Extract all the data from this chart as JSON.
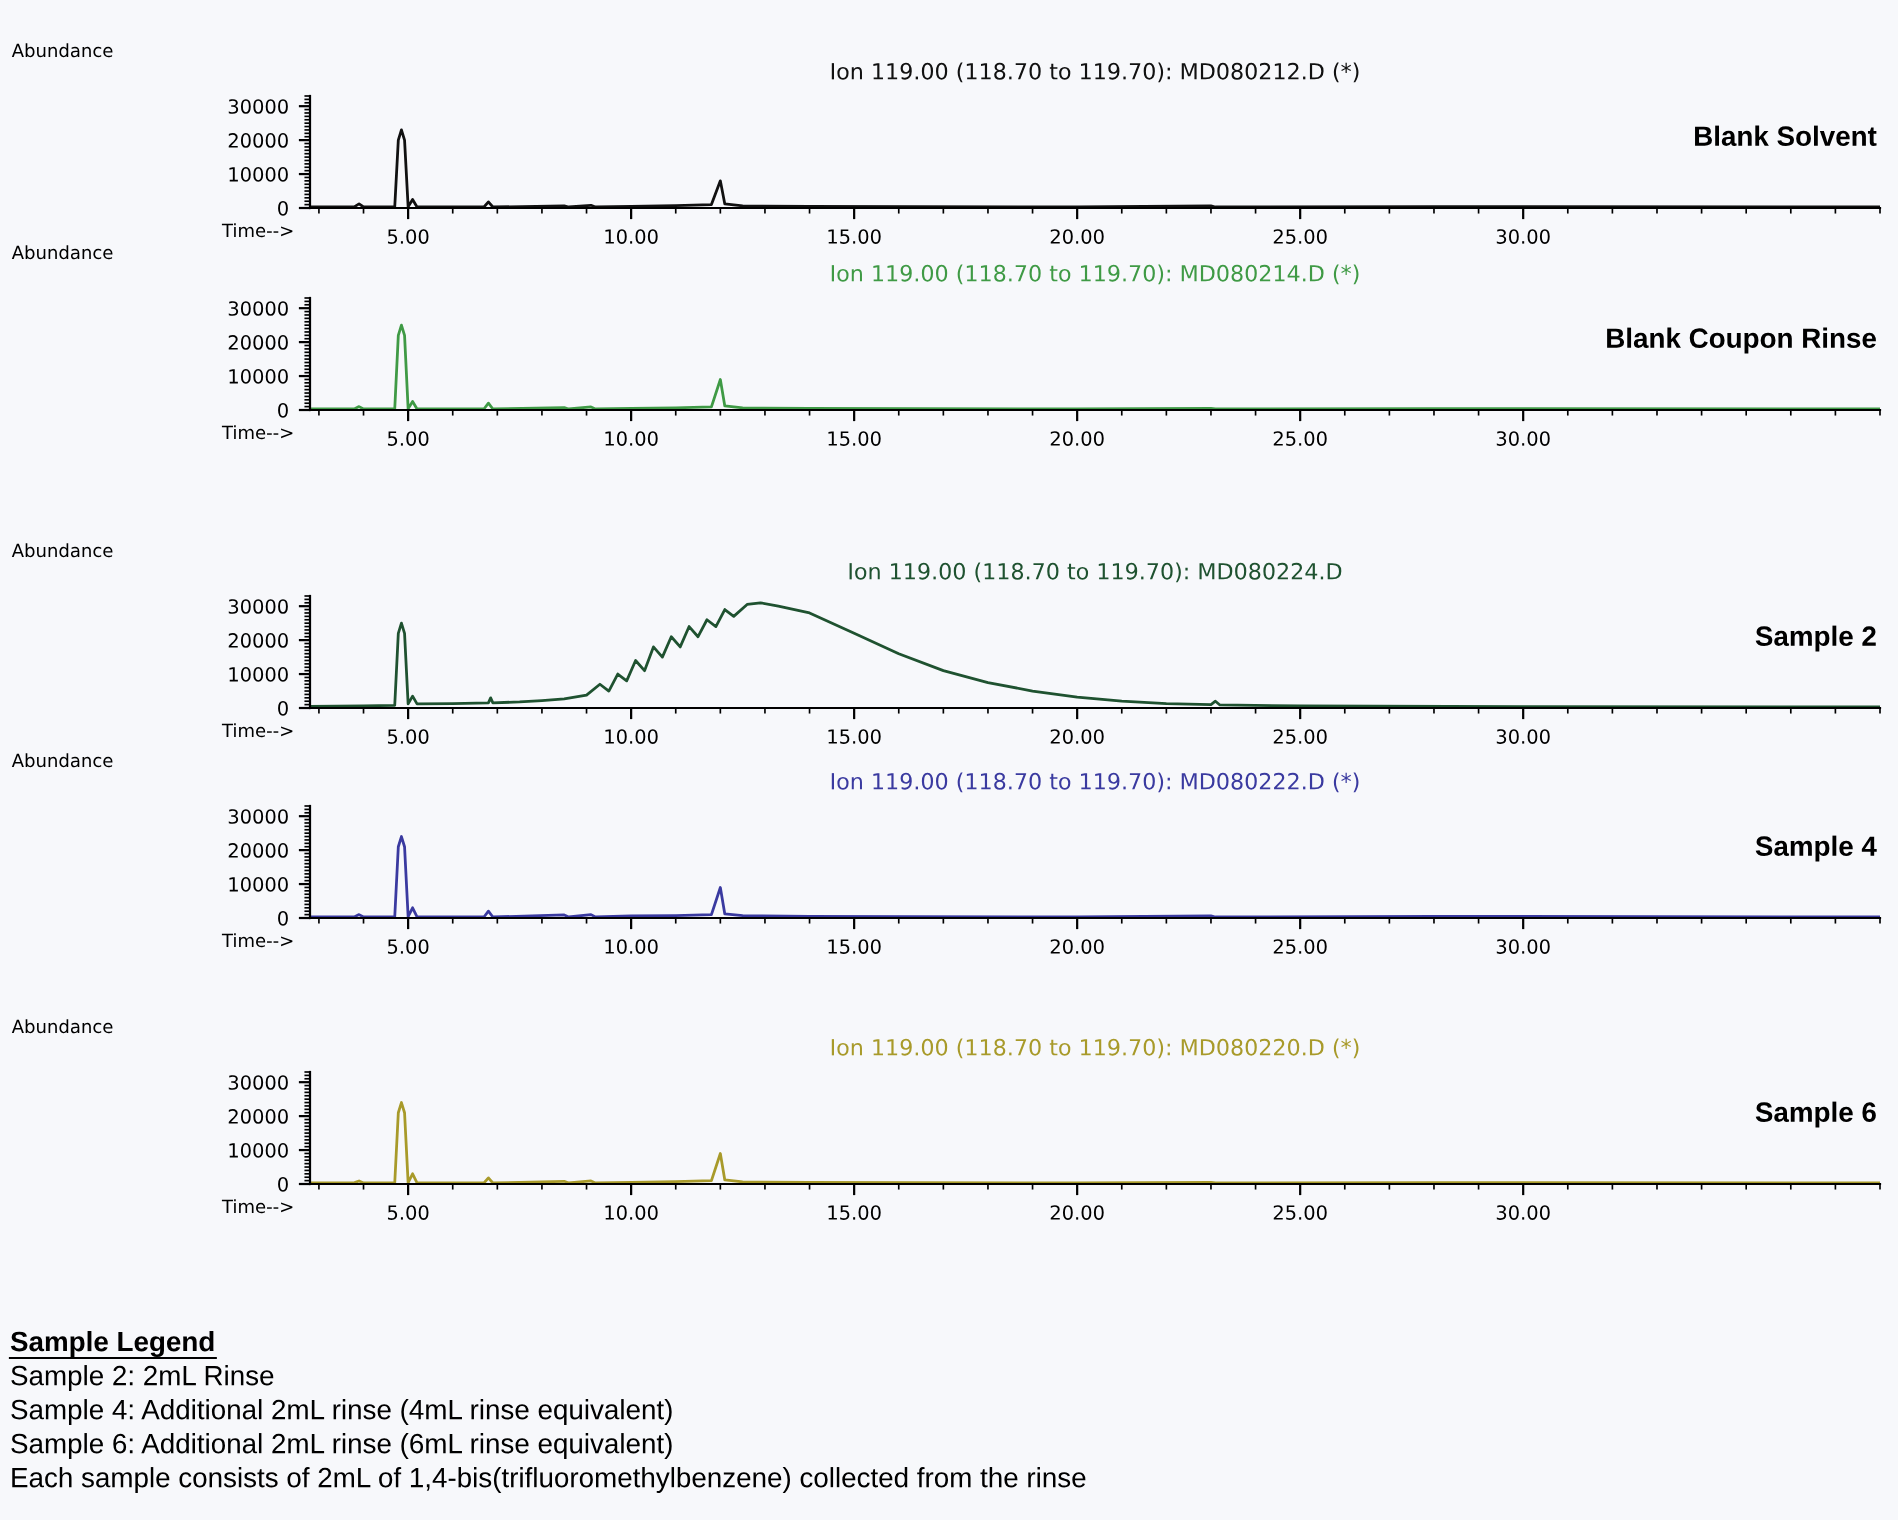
{
  "chart_data": [
    {
      "type": "line",
      "title": "Ion 119.00 (118.70 to 119.70): MD080212.D (*)",
      "xlabel": "Time-->",
      "ylabel": "Abundance",
      "xlim": [
        2.8,
        38
      ],
      "xticks": [
        {
          "value": 5,
          "label": "5.00"
        },
        {
          "value": 10,
          "label": "10.00"
        },
        {
          "value": 15,
          "label": "15.00"
        },
        {
          "value": 20,
          "label": "20.00"
        },
        {
          "value": 25,
          "label": "25.00"
        },
        {
          "value": 30,
          "label": "30.00"
        }
      ],
      "ylim": [
        0,
        33000
      ],
      "yticks": [
        0,
        10000,
        20000,
        30000
      ],
      "legend": false,
      "grid": false,
      "series": [
        {
          "name": "Blank Solvent",
          "color": "#111111",
          "x": [
            2.8,
            3.8,
            3.9,
            4.0,
            4.7,
            4.78,
            4.85,
            4.92,
            5.0,
            5.1,
            5.2,
            6.7,
            6.8,
            6.9,
            8.5,
            8.6,
            9.1,
            9.2,
            10.0,
            11.0,
            11.8,
            12.0,
            12.1,
            12.5,
            14.0,
            20.0,
            23.0,
            23.1,
            28.0,
            38.0
          ],
          "values": [
            300,
            400,
            1200,
            300,
            300,
            20000,
            23000,
            20000,
            400,
            2500,
            300,
            300,
            1800,
            300,
            600,
            300,
            800,
            300,
            500,
            700,
            1000,
            8000,
            1200,
            600,
            500,
            300,
            600,
            300,
            400,
            300
          ]
        }
      ]
    },
    {
      "type": "line",
      "title": "Ion 119.00 (118.70 to 119.70): MD080214.D (*)",
      "xlabel": "Time-->",
      "ylabel": "Abundance",
      "xlim": [
        2.8,
        38
      ],
      "xticks": [
        {
          "value": 5,
          "label": "5.00"
        },
        {
          "value": 10,
          "label": "10.00"
        },
        {
          "value": 15,
          "label": "15.00"
        },
        {
          "value": 20,
          "label": "20.00"
        },
        {
          "value": 25,
          "label": "25.00"
        },
        {
          "value": 30,
          "label": "30.00"
        }
      ],
      "ylim": [
        0,
        33000
      ],
      "yticks": [
        0,
        10000,
        20000,
        30000
      ],
      "legend": false,
      "grid": false,
      "series": [
        {
          "name": "Blank Coupon Rinse",
          "color": "#3f9a45",
          "x": [
            2.8,
            3.8,
            3.9,
            4.0,
            4.7,
            4.78,
            4.85,
            4.92,
            5.0,
            5.1,
            5.2,
            6.7,
            6.8,
            6.9,
            8.5,
            8.6,
            9.1,
            9.2,
            10.0,
            11.0,
            11.8,
            12.0,
            12.1,
            12.5,
            14.0,
            20.0,
            23.0,
            23.1,
            28.0,
            38.0
          ],
          "values": [
            300,
            400,
            1000,
            300,
            300,
            22000,
            25000,
            22000,
            400,
            2500,
            300,
            300,
            2000,
            300,
            700,
            300,
            900,
            300,
            500,
            600,
            900,
            9000,
            1200,
            600,
            500,
            300,
            500,
            300,
            400,
            300
          ]
        }
      ]
    },
    {
      "type": "line",
      "title": "Ion 119.00 (118.70 to 119.70): MD080224.D",
      "xlabel": "Time-->",
      "ylabel": "Abundance",
      "xlim": [
        2.8,
        38
      ],
      "xticks": [
        {
          "value": 5,
          "label": "5.00"
        },
        {
          "value": 10,
          "label": "10.00"
        },
        {
          "value": 15,
          "label": "15.00"
        },
        {
          "value": 20,
          "label": "20.00"
        },
        {
          "value": 25,
          "label": "25.00"
        },
        {
          "value": 30,
          "label": "30.00"
        }
      ],
      "ylim": [
        0,
        33000
      ],
      "yticks": [
        0,
        10000,
        20000,
        30000
      ],
      "legend": false,
      "grid": false,
      "series": [
        {
          "name": "Sample 2",
          "color": "#1f5230",
          "x": [
            2.8,
            4.0,
            4.7,
            4.78,
            4.85,
            4.92,
            5.0,
            5.1,
            5.2,
            6.0,
            6.8,
            6.85,
            6.9,
            7.5,
            8.0,
            8.5,
            9.0,
            9.3,
            9.5,
            9.7,
            9.9,
            10.1,
            10.3,
            10.5,
            10.7,
            10.9,
            11.1,
            11.3,
            11.5,
            11.7,
            11.9,
            12.1,
            12.3,
            12.6,
            12.9,
            13.3,
            14.0,
            15.0,
            16.0,
            17.0,
            18.0,
            19.0,
            20.0,
            21.0,
            22.0,
            23.0,
            23.1,
            23.2,
            25.0,
            30.0,
            38.0
          ],
          "values": [
            500,
            600,
            800,
            22000,
            25000,
            22000,
            1200,
            3500,
            1200,
            1300,
            1500,
            3000,
            1500,
            1800,
            2200,
            2700,
            3800,
            7000,
            5000,
            10000,
            8000,
            14000,
            11000,
            18000,
            15000,
            21000,
            18000,
            24000,
            21000,
            26000,
            24000,
            29000,
            27000,
            30500,
            31000,
            30000,
            28000,
            22000,
            16000,
            11000,
            7500,
            5000,
            3200,
            2000,
            1300,
            1000,
            2000,
            900,
            600,
            400,
            300
          ]
        }
      ]
    },
    {
      "type": "line",
      "title": "Ion 119.00 (118.70 to 119.70): MD080222.D (*)",
      "xlabel": "Time-->",
      "ylabel": "Abundance",
      "xlim": [
        2.8,
        38
      ],
      "xticks": [
        {
          "value": 5,
          "label": "5.00"
        },
        {
          "value": 10,
          "label": "10.00"
        },
        {
          "value": 15,
          "label": "15.00"
        },
        {
          "value": 20,
          "label": "20.00"
        },
        {
          "value": 25,
          "label": "25.00"
        },
        {
          "value": 30,
          "label": "30.00"
        }
      ],
      "ylim": [
        0,
        33000
      ],
      "yticks": [
        0,
        10000,
        20000,
        30000
      ],
      "legend": false,
      "grid": false,
      "series": [
        {
          "name": "Sample 4",
          "color": "#3a3aa0",
          "x": [
            2.8,
            3.8,
            3.9,
            4.0,
            4.7,
            4.78,
            4.85,
            4.92,
            5.0,
            5.1,
            5.2,
            6.7,
            6.8,
            6.9,
            8.5,
            8.6,
            9.1,
            9.2,
            10.0,
            11.0,
            11.8,
            12.0,
            12.1,
            12.5,
            14.0,
            20.0,
            23.0,
            23.1,
            28.0,
            38.0
          ],
          "values": [
            300,
            400,
            1000,
            300,
            300,
            21000,
            24000,
            21000,
            400,
            3000,
            300,
            300,
            2000,
            300,
            900,
            300,
            1000,
            300,
            600,
            700,
            1000,
            9000,
            1200,
            700,
            500,
            300,
            600,
            300,
            500,
            300
          ]
        }
      ]
    },
    {
      "type": "line",
      "title": "Ion 119.00 (118.70 to 119.70): MD080220.D (*)",
      "xlabel": "Time-->",
      "ylabel": "Abundance",
      "xlim": [
        2.8,
        38
      ],
      "xticks": [
        {
          "value": 5,
          "label": "5.00"
        },
        {
          "value": 10,
          "label": "10.00"
        },
        {
          "value": 15,
          "label": "15.00"
        },
        {
          "value": 20,
          "label": "20.00"
        },
        {
          "value": 25,
          "label": "25.00"
        },
        {
          "value": 30,
          "label": "30.00"
        }
      ],
      "ylim": [
        0,
        33000
      ],
      "yticks": [
        0,
        10000,
        20000,
        30000
      ],
      "legend": false,
      "grid": false,
      "series": [
        {
          "name": "Sample 6",
          "color": "#a89a2a",
          "x": [
            2.8,
            3.8,
            3.9,
            4.0,
            4.7,
            4.78,
            4.85,
            4.92,
            5.0,
            5.1,
            5.2,
            6.7,
            6.8,
            6.9,
            8.5,
            8.6,
            9.1,
            9.2,
            10.0,
            11.0,
            11.8,
            12.0,
            12.1,
            12.5,
            14.0,
            20.0,
            23.0,
            23.1,
            28.0,
            38.0
          ],
          "values": [
            300,
            400,
            900,
            300,
            300,
            21000,
            24000,
            21000,
            400,
            3000,
            300,
            300,
            1800,
            300,
            800,
            300,
            900,
            300,
            500,
            700,
            1000,
            9000,
            1200,
            600,
            500,
            300,
            500,
            300,
            400,
            300
          ]
        }
      ],
      "annotations": [
        "Sample Legend",
        "Sample 2: 2mL Rinse",
        "Sample 4: Additional 2mL rinse (4mL rinse equivalent)",
        "Sample 6: Additional 2mL rinse (6mL rinse equivalent)",
        "Each sample consists of 2mL of 1,4-bis(trifluoromethylbenzene) collected from the rinse"
      ]
    }
  ]
}
